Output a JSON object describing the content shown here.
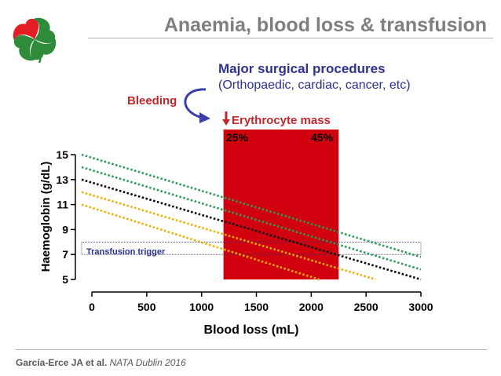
{
  "slide": {
    "title": "Anaemia, blood loss & transfusion",
    "citation_authors": "García-Erce JA et al.",
    "citation_source": "NATA Dublin 2016",
    "logo_icon": "four-leaf-clover-logo-icon",
    "brand_colors": {
      "red": "#e31e24",
      "green": "#2e8b3a"
    }
  },
  "annotations": {
    "procedures_title": "Major surgical procedures",
    "procedures_subtitle": "(Orthopaedic, cardiac, cancer, etc)",
    "bleeding_label": "Bleeding",
    "erythrocyte_label": "Erythrocyte mass",
    "erythrocyte_arrow_icon": "down-arrow-icon",
    "bleeding_arrow_icon": "curved-arrow-icon",
    "pct_low": "25%",
    "pct_high": "45%",
    "trigger_label": "Transfusion trigger",
    "colors": {
      "title_blue": "#2e3192",
      "bleeding_red": "#c1272d",
      "arrow_blue": "#3b3ea8"
    }
  },
  "chart_data": {
    "type": "line",
    "title": "",
    "xlabel": "Blood loss (mL)",
    "ylabel": "Haemoglobin (g/dL)",
    "xlim": [
      0,
      3000
    ],
    "ylim": [
      5,
      15
    ],
    "xticks": [
      "0",
      "500",
      "1000",
      "1500",
      "2000",
      "2500",
      "3000"
    ],
    "yticks": [
      "5",
      "7",
      "9",
      "11",
      "13",
      "15"
    ],
    "grid": false,
    "line_style": "dotted",
    "series": [
      {
        "color": "#2e9b5a",
        "points": [
          [
            0,
            15
          ],
          [
            3000,
            6.8
          ]
        ]
      },
      {
        "color": "#2e9b5a",
        "points": [
          [
            0,
            14
          ],
          [
            3000,
            5.8
          ]
        ]
      },
      {
        "color": "#000000",
        "points": [
          [
            0,
            13
          ],
          [
            3000,
            5
          ]
        ]
      },
      {
        "color": "#f0b000",
        "points": [
          [
            0,
            12
          ],
          [
            2600,
            5
          ]
        ]
      },
      {
        "color": "#f0b000",
        "points": [
          [
            0,
            11
          ],
          [
            2100,
            5
          ]
        ]
      }
    ],
    "shaded_region": {
      "x": [
        1200,
        2250
      ],
      "y": [
        5,
        15
      ],
      "color": "#d0000f"
    },
    "transfusion_band": {
      "y": [
        7,
        8
      ],
      "x": [
        0,
        3000
      ]
    }
  }
}
